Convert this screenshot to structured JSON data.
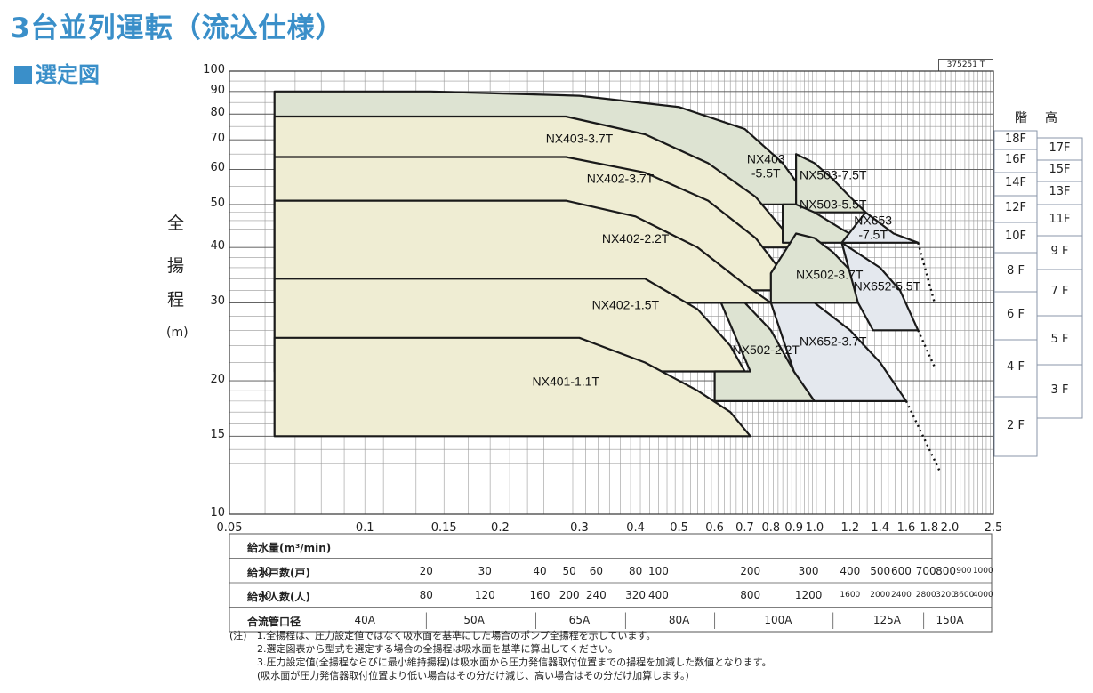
{
  "title": "3台並列運転（流込仕様）",
  "subtitle": "選定図",
  "doc_id": "375251 T",
  "y_label_chars": [
    "全",
    "揚",
    "程"
  ],
  "y_unit": "(m)",
  "floor_header": [
    "階",
    "高"
  ],
  "floors_left": [
    "18F",
    "16F",
    "14F",
    "12F",
    "10F",
    "8 F",
    "6 F",
    "4 F",
    "2 F"
  ],
  "floors_right": [
    "17F",
    "15F",
    "13F",
    "11F",
    "9 F",
    "7 F",
    "5 F",
    "3 F"
  ],
  "chart_data": {
    "type": "area",
    "xscale": "log",
    "yscale": "log",
    "xlim": [
      0.05,
      2.5
    ],
    "ylim": [
      10,
      100
    ],
    "xlabel": "給水量(m³/min)",
    "ylabel": "全揚程 (m)",
    "xticks": [
      0.05,
      0.1,
      0.15,
      0.2,
      0.3,
      0.4,
      0.5,
      0.6,
      0.7,
      0.8,
      0.9,
      1.0,
      1.2,
      1.4,
      1.6,
      1.8,
      2.0,
      2.5
    ],
    "xtick_labels": [
      "0.05",
      "0.1",
      "0.15",
      "0.2",
      "0.3",
      "0.4",
      "0.5",
      "0.6",
      "0.7",
      "0.8",
      "0.9",
      "1.0",
      "1.2",
      "1.4",
      "1.6",
      "1.8",
      "2.0",
      "2.5"
    ],
    "yticks": [
      10,
      15,
      20,
      30,
      40,
      50,
      60,
      70,
      80,
      90,
      100
    ],
    "grid": true,
    "regions": [
      {
        "name": "NX403-5.5T",
        "label": "NX403\n-5.5T",
        "fill": "#dde3d2",
        "label_at": [
          0.78,
          62
        ],
        "points": [
          [
            0.063,
            90
          ],
          [
            0.14,
            90
          ],
          [
            0.3,
            88
          ],
          [
            0.5,
            83
          ],
          [
            0.7,
            74
          ],
          [
            0.85,
            62
          ],
          [
            0.95,
            53
          ],
          [
            0.97,
            50
          ],
          [
            0.063,
            50
          ]
        ]
      },
      {
        "name": "NX403-3.7T",
        "label": "NX403-3.7T",
        "fill": "#efedd3",
        "label_at": [
          0.3,
          69
        ],
        "points": [
          [
            0.063,
            79
          ],
          [
            0.28,
            79
          ],
          [
            0.42,
            72
          ],
          [
            0.58,
            62
          ],
          [
            0.74,
            52
          ],
          [
            0.85,
            44
          ],
          [
            0.9,
            40
          ],
          [
            0.063,
            40
          ]
        ]
      },
      {
        "name": "NX402-3.7T",
        "label": "NX402-3.7T",
        "fill": "#efedd3",
        "label_at": [
          0.37,
          56
        ],
        "points": [
          [
            0.063,
            64
          ],
          [
            0.28,
            64
          ],
          [
            0.42,
            59
          ],
          [
            0.58,
            51
          ],
          [
            0.74,
            42
          ],
          [
            0.85,
            35
          ],
          [
            0.9,
            32
          ],
          [
            0.063,
            32
          ]
        ]
      },
      {
        "name": "NX503-7.5T",
        "label": "NX503-7.5T",
        "fill": "#dde3d2",
        "label_at": [
          1.1,
          57
        ],
        "points": [
          [
            0.91,
            65
          ],
          [
            1.0,
            62
          ],
          [
            1.1,
            57
          ],
          [
            1.2,
            52
          ],
          [
            1.3,
            48
          ],
          [
            0.91,
            48
          ]
        ]
      },
      {
        "name": "NX503-5.5T",
        "label": "NX503-5.5T",
        "fill": "#dde3d2",
        "label_at": [
          1.1,
          49
        ],
        "points": [
          [
            0.85,
            50
          ],
          [
            0.91,
            50
          ],
          [
            1.0,
            48
          ],
          [
            1.15,
            44
          ],
          [
            1.3,
            41
          ],
          [
            0.85,
            41
          ]
        ]
      },
      {
        "name": "NX653-7.5T",
        "label": "NX653\n-7.5T",
        "fill": "#e4e8ee",
        "label_at": [
          1.35,
          45
        ],
        "points": [
          [
            1.15,
            41
          ],
          [
            1.3,
            48
          ],
          [
            1.5,
            43
          ],
          [
            1.7,
            41
          ],
          [
            1.15,
            41
          ]
        ]
      },
      {
        "name": "NX402-2.2T",
        "label": "NX402-2.2T",
        "fill": "#efedd3",
        "label_at": [
          0.4,
          41
        ],
        "points": [
          [
            0.063,
            51
          ],
          [
            0.28,
            51
          ],
          [
            0.4,
            47
          ],
          [
            0.55,
            40
          ],
          [
            0.7,
            33
          ],
          [
            0.8,
            30
          ],
          [
            0.063,
            30
          ]
        ]
      },
      {
        "name": "NX502-3.7T",
        "label": "NX502-3.7T",
        "fill": "#dde3d2",
        "label_at": [
          1.08,
          34
        ],
        "points": [
          [
            0.8,
            35
          ],
          [
            0.91,
            43
          ],
          [
            1.0,
            42
          ],
          [
            1.1,
            39
          ],
          [
            1.25,
            34
          ],
          [
            1.35,
            30
          ],
          [
            0.8,
            30
          ]
        ]
      },
      {
        "name": "NX652-5.5T",
        "label": "NX652-5.5T",
        "fill": "#e4e8ee",
        "label_at": [
          1.45,
          32
        ],
        "points": [
          [
            1.15,
            41
          ],
          [
            1.4,
            36
          ],
          [
            1.55,
            32
          ],
          [
            1.7,
            26
          ],
          [
            1.35,
            26
          ],
          [
            1.25,
            30
          ]
        ]
      },
      {
        "name": "NX402-1.5T",
        "label": "NX402-1.5T",
        "fill": "#efedd3",
        "label_at": [
          0.38,
          29
        ],
        "points": [
          [
            0.063,
            34
          ],
          [
            0.42,
            34
          ],
          [
            0.55,
            29
          ],
          [
            0.65,
            24
          ],
          [
            0.7,
            21
          ],
          [
            0.063,
            21
          ]
        ]
      },
      {
        "name": "NX502-2.2T",
        "label": "NX502-2.2T",
        "fill": "#dde3d2",
        "label_at": [
          0.78,
          23
        ],
        "points": [
          [
            0.62,
            30
          ],
          [
            0.7,
            30
          ],
          [
            0.8,
            26
          ],
          [
            0.9,
            21
          ],
          [
            1.0,
            18
          ],
          [
            0.6,
            18
          ],
          [
            0.6,
            21
          ],
          [
            0.72,
            21
          ]
        ]
      },
      {
        "name": "NX652-3.7T",
        "label": "NX652-3.7T",
        "fill": "#e4e8ee",
        "label_at": [
          1.1,
          24
        ],
        "points": [
          [
            0.8,
            30
          ],
          [
            1.0,
            30
          ],
          [
            1.2,
            26
          ],
          [
            1.4,
            22
          ],
          [
            1.6,
            18
          ],
          [
            1.0,
            18
          ],
          [
            0.9,
            21
          ]
        ]
      },
      {
        "name": "NX401-1.1T",
        "label": "NX401-1.1T",
        "fill": "#efedd3",
        "label_at": [
          0.28,
          19.5
        ],
        "points": [
          [
            0.063,
            25
          ],
          [
            0.3,
            25
          ],
          [
            0.42,
            22
          ],
          [
            0.55,
            19
          ],
          [
            0.65,
            17
          ],
          [
            0.72,
            15
          ],
          [
            0.063,
            15
          ]
        ]
      }
    ],
    "extensions": [
      [
        [
          1.7,
          41
        ],
        [
          1.85,
          30
        ]
      ],
      [
        [
          1.7,
          26
        ],
        [
          1.85,
          21.5
        ]
      ],
      [
        [
          1.6,
          18
        ],
        [
          1.9,
          12.5
        ]
      ]
    ]
  },
  "table": {
    "rows": [
      {
        "label": "給水量(m³/min)",
        "values": []
      },
      {
        "label": "給水戸数(戸)",
        "values": [
          {
            "x": 0.06,
            "t": "10"
          },
          {
            "x": 0.137,
            "t": "20"
          },
          {
            "x": 0.185,
            "t": "30"
          },
          {
            "x": 0.245,
            "t": "40"
          },
          {
            "x": 0.285,
            "t": "50"
          },
          {
            "x": 0.327,
            "t": "60"
          },
          {
            "x": 0.4,
            "t": "80"
          },
          {
            "x": 0.45,
            "t": "100"
          },
          {
            "x": 0.72,
            "t": "200"
          },
          {
            "x": 0.97,
            "t": "300"
          },
          {
            "x": 1.2,
            "t": "400"
          },
          {
            "x": 1.4,
            "t": "500"
          },
          {
            "x": 1.56,
            "t": "600"
          },
          {
            "x": 1.77,
            "t": "700"
          },
          {
            "x": 1.96,
            "t": "800"
          },
          {
            "x": 2.15,
            "t": "900",
            "sm": true
          },
          {
            "x": 2.37,
            "t": "1000",
            "sm": true
          }
        ]
      },
      {
        "label": "給水人数(人)",
        "values": [
          {
            "x": 0.06,
            "t": "40"
          },
          {
            "x": 0.137,
            "t": "80"
          },
          {
            "x": 0.185,
            "t": "120"
          },
          {
            "x": 0.245,
            "t": "160"
          },
          {
            "x": 0.285,
            "t": "200"
          },
          {
            "x": 0.327,
            "t": "240"
          },
          {
            "x": 0.4,
            "t": "320"
          },
          {
            "x": 0.45,
            "t": "400"
          },
          {
            "x": 0.72,
            "t": "800"
          },
          {
            "x": 0.97,
            "t": "1200"
          },
          {
            "x": 1.2,
            "t": "1600",
            "sm": true
          },
          {
            "x": 1.4,
            "t": "2000",
            "sm": true
          },
          {
            "x": 1.56,
            "t": "2400",
            "sm": true
          },
          {
            "x": 1.77,
            "t": "2800",
            "sm": true
          },
          {
            "x": 1.96,
            "t": "3200",
            "sm": true
          },
          {
            "x": 2.15,
            "t": "3600",
            "sm": true
          },
          {
            "x": 2.37,
            "t": "4000",
            "sm": true
          }
        ]
      },
      {
        "label": "合流管口径",
        "values": [
          {
            "x": 0.1,
            "t": "40A"
          },
          {
            "x": 0.175,
            "t": "50A"
          },
          {
            "x": 0.3,
            "t": "65A"
          },
          {
            "x": 0.5,
            "t": "80A"
          },
          {
            "x": 0.83,
            "t": "100A"
          },
          {
            "x": 1.45,
            "t": "125A"
          },
          {
            "x": 2.0,
            "t": "150A"
          }
        ]
      }
    ]
  },
  "notes": [
    "(注)　1.全揚程は、圧力設定値ではなく吸水面を基準にした場合のポンプ全揚程を示しています。",
    "2.選定図表から型式を選定する場合の全揚程は吸水面を基準に算出してください。",
    "3.圧力設定値(全揚程ならびに最小維持揚程)は吸水面から圧力発信器取付位置までの揚程を加減した数値となります。",
    "(吸水面が圧力発信器取付位置より低い場合はその分だけ減じ、高い場合はその分だけ加算します。)"
  ]
}
